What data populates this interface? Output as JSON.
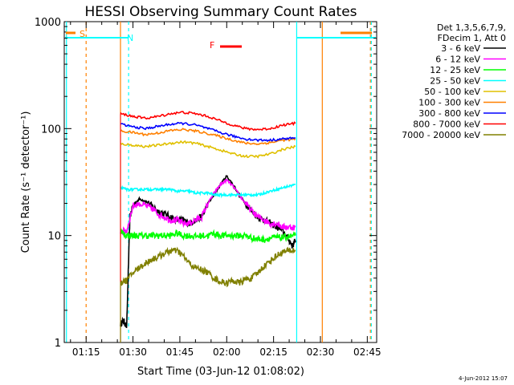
{
  "chart_data": {
    "type": "line",
    "title": "HESSI Observing Summary Count Rates",
    "xlabel": "Start Time (03-Jun-12 01:08:02)",
    "ylabel": "Count Rate (s⁻¹ detector⁻¹)",
    "yscale": "log",
    "ylim": [
      1,
      1000
    ],
    "xlim_minutes": [
      68,
      168
    ],
    "x_ticks": [
      {
        "minute": 75,
        "label": "01:15"
      },
      {
        "minute": 90,
        "label": "01:30"
      },
      {
        "minute": 105,
        "label": "01:45"
      },
      {
        "minute": 120,
        "label": "02:00"
      },
      {
        "minute": 135,
        "label": "02:15"
      },
      {
        "minute": 150,
        "label": "02:30"
      },
      {
        "minute": 165,
        "label": "02:45"
      }
    ],
    "y_ticks": [
      {
        "value": 1,
        "label": "1"
      },
      {
        "value": 10,
        "label": "10"
      },
      {
        "value": 100,
        "label": "100"
      },
      {
        "value": 1000,
        "label": "1000"
      }
    ],
    "legend_header": [
      "Det 1,3,5,6,7,9,",
      "FDecim 1, Att 0"
    ],
    "legend_position": "right",
    "series": [
      {
        "name": "3 - 6 keV",
        "color": "#000000",
        "x": [
          86,
          87,
          88,
          89,
          90,
          92,
          94,
          96,
          98,
          100,
          102,
          104,
          106,
          108,
          110,
          112,
          114,
          116,
          118,
          120,
          122,
          124,
          126,
          128,
          130,
          132,
          134,
          136,
          138,
          140,
          141,
          142
        ],
        "values": [
          1.5,
          1.6,
          1.4,
          15,
          19,
          22,
          21,
          19,
          17,
          16,
          15,
          14,
          14,
          13,
          14,
          15,
          20,
          24,
          30,
          36,
          30,
          24,
          20,
          17,
          15,
          14,
          13,
          12,
          11,
          9,
          8,
          9
        ]
      },
      {
        "name": "6 - 12 keV",
        "color": "#ff00ff",
        "x": [
          86,
          88,
          90,
          92,
          94,
          96,
          98,
          100,
          102,
          104,
          106,
          108,
          110,
          112,
          114,
          116,
          118,
          120,
          122,
          124,
          126,
          128,
          130,
          132,
          134,
          136,
          138,
          140,
          142
        ],
        "values": [
          11,
          11,
          19,
          20,
          19,
          18,
          16,
          15,
          14,
          14,
          13,
          13,
          14,
          15,
          20,
          25,
          30,
          33,
          29,
          24,
          20,
          17,
          15,
          14,
          13,
          13,
          12,
          12,
          12
        ]
      },
      {
        "name": "12 - 25 keV",
        "color": "#00ff00",
        "x": [
          86,
          88,
          90,
          92,
          94,
          96,
          98,
          100,
          102,
          104,
          106,
          108,
          110,
          112,
          114,
          116,
          118,
          120,
          122,
          124,
          126,
          128,
          130,
          132,
          134,
          136,
          138,
          140,
          142
        ],
        "values": [
          11,
          10,
          10,
          10,
          10,
          10,
          10,
          10,
          10,
          10.5,
          10,
          10,
          9.8,
          10,
          10,
          10.5,
          10,
          10,
          10,
          10,
          10,
          9.5,
          9.3,
          9.2,
          9.5,
          9.6,
          9.6,
          9.8,
          10
        ]
      },
      {
        "name": "25 - 50 keV",
        "color": "#00ffff",
        "x": [
          86,
          88,
          90,
          92,
          94,
          96,
          98,
          100,
          102,
          104,
          106,
          108,
          110,
          112,
          114,
          116,
          118,
          120,
          122,
          124,
          126,
          128,
          130,
          132,
          134,
          136,
          138,
          140,
          142
        ],
        "values": [
          28,
          27,
          27,
          27,
          27,
          27,
          27,
          27,
          27,
          26,
          26,
          26,
          25,
          25,
          25,
          24,
          24,
          24,
          24,
          24,
          24,
          24,
          24,
          25,
          26,
          27,
          28,
          29,
          30
        ]
      },
      {
        "name": "50 - 100 keV",
        "color": "#e0c000",
        "x": [
          86,
          90,
          94,
          98,
          102,
          106,
          110,
          114,
          118,
          122,
          126,
          130,
          134,
          138,
          142
        ],
        "values": [
          72,
          70,
          68,
          70,
          73,
          75,
          73,
          68,
          63,
          58,
          55,
          55,
          58,
          64,
          68
        ]
      },
      {
        "name": "100 - 300 keV",
        "color": "#ff8000",
        "x": [
          86,
          90,
          94,
          98,
          102,
          106,
          110,
          114,
          118,
          122,
          126,
          130,
          134,
          138,
          142
        ],
        "values": [
          95,
          92,
          88,
          91,
          96,
          98,
          95,
          90,
          84,
          78,
          73,
          72,
          74,
          78,
          80
        ]
      },
      {
        "name": "300 - 800 keV",
        "color": "#0000ff",
        "x": [
          86,
          90,
          94,
          98,
          102,
          106,
          110,
          114,
          118,
          122,
          126,
          130,
          134,
          138,
          142
        ],
        "values": [
          110,
          104,
          100,
          105,
          110,
          112,
          108,
          100,
          92,
          85,
          80,
          78,
          78,
          80,
          82
        ]
      },
      {
        "name": "800 - 7000 keV",
        "color": "#ff0000",
        "x": [
          86,
          90,
          94,
          98,
          102,
          106,
          110,
          114,
          118,
          122,
          126,
          130,
          134,
          138,
          142
        ],
        "values": [
          138,
          130,
          125,
          130,
          138,
          142,
          138,
          130,
          118,
          108,
          100,
          98,
          100,
          108,
          112
        ]
      },
      {
        "name": "7000 - 20000 keV",
        "color": "#808000",
        "x": [
          86,
          88,
          90,
          92,
          94,
          96,
          98,
          100,
          102,
          104,
          106,
          108,
          110,
          112,
          114,
          116,
          118,
          120,
          122,
          124,
          126,
          128,
          130,
          132,
          134,
          136,
          138,
          140,
          142
        ],
        "values": [
          3.7,
          3.8,
          4.5,
          5,
          5.5,
          6,
          6.3,
          6.8,
          7.2,
          7.2,
          6.5,
          5.5,
          5,
          4.8,
          4.5,
          4,
          3.7,
          3.6,
          3.8,
          3.6,
          3.9,
          4,
          4.5,
          5.2,
          5.8,
          6.5,
          7,
          7.2,
          7.3
        ]
      }
    ],
    "annotations": [
      {
        "label": "S",
        "color": "#ff8000"
      },
      {
        "label": "N",
        "color": "#00ffff"
      },
      {
        "label": "F",
        "color": "#ff0000"
      }
    ],
    "timestamp": "4-Jun-2012 15:07"
  }
}
